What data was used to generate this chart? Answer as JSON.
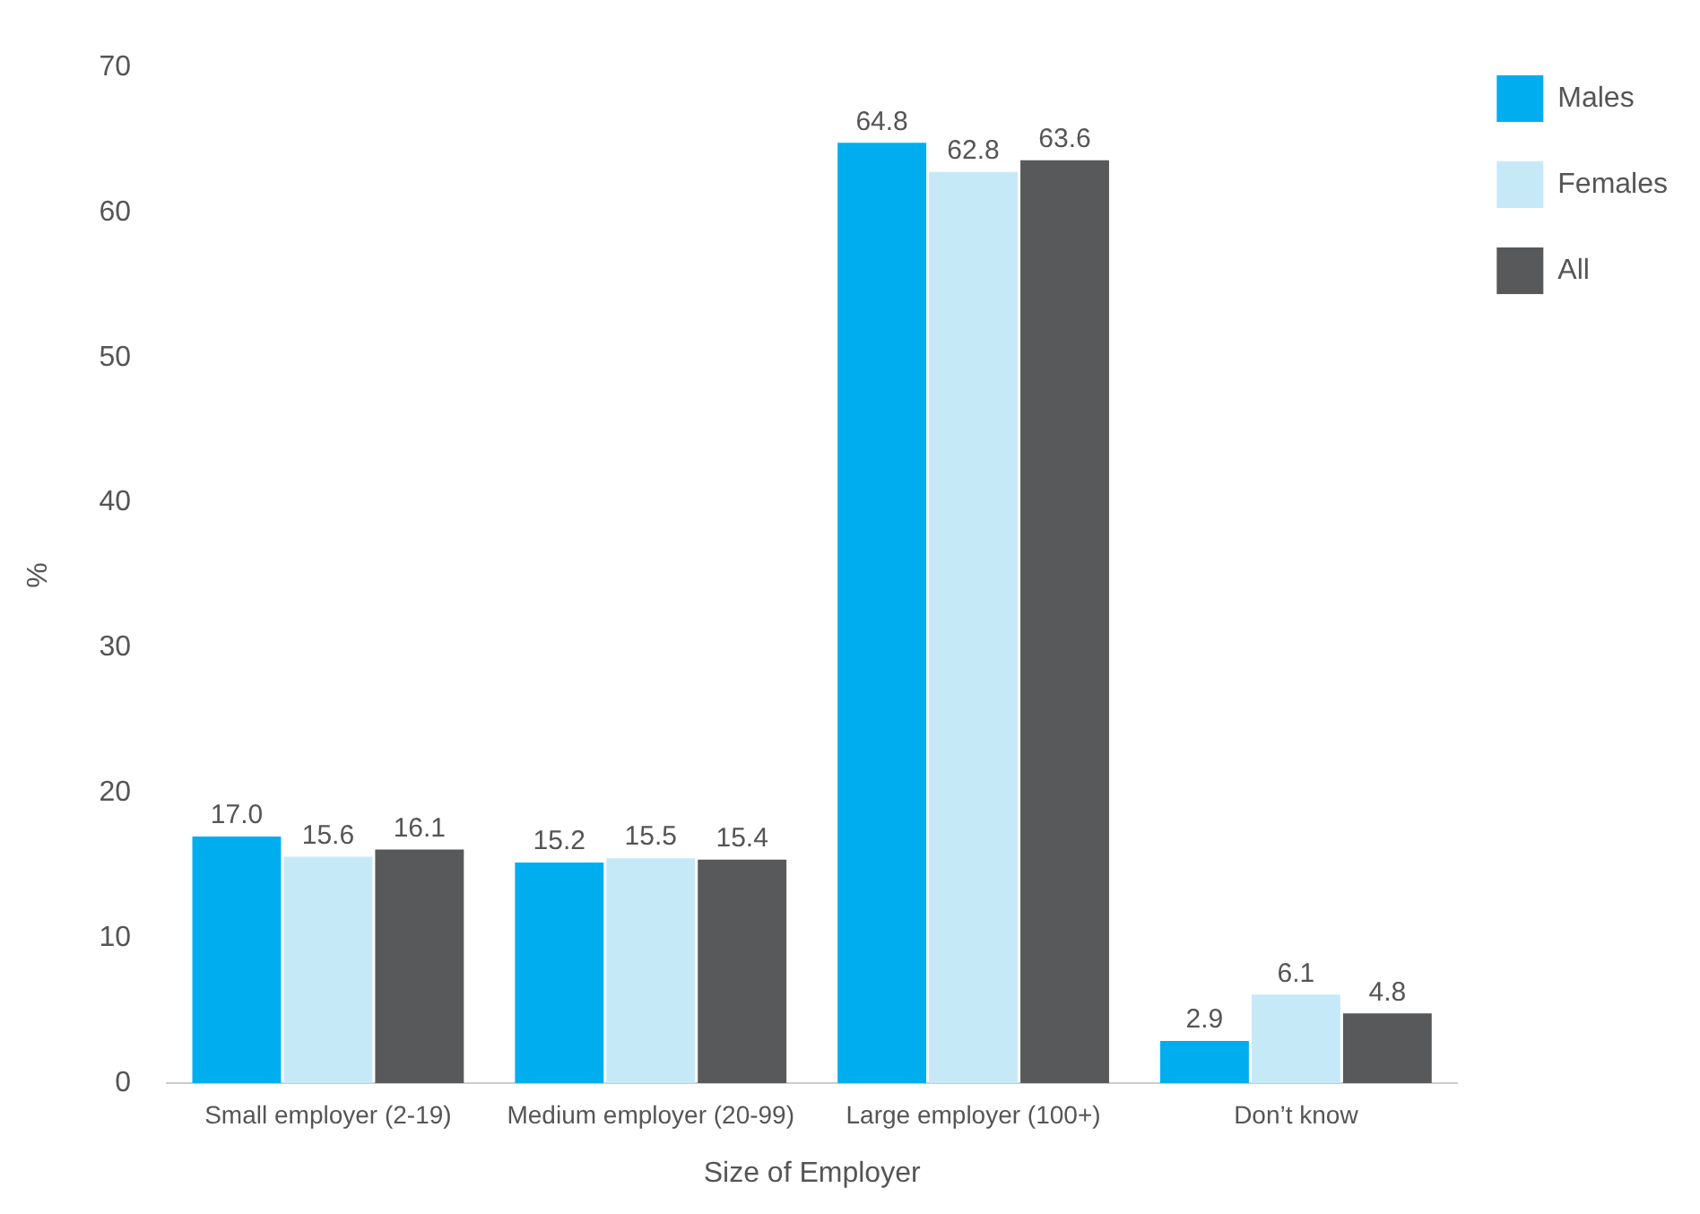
{
  "chart_data": {
    "type": "bar",
    "xlabel": "Size of Employer",
    "ylabel": "%",
    "categories": [
      "Small employer (2-19)",
      "Medium employer (20-99)",
      "Large employer (100+)",
      "Don’t know"
    ],
    "series": [
      {
        "name": "Males",
        "color": "#00aeef",
        "values": [
          17.0,
          15.2,
          64.8,
          2.9
        ],
        "value_labels": [
          "17.0",
          "15.2",
          "64.8",
          "2.9"
        ]
      },
      {
        "name": "Females",
        "color": "#c6e9f8",
        "values": [
          15.6,
          15.5,
          62.8,
          6.1
        ],
        "value_labels": [
          "15.6",
          "15.5",
          "62.8",
          "6.1"
        ]
      },
      {
        "name": "All",
        "color": "#58595b",
        "values": [
          16.1,
          15.4,
          63.6,
          4.8
        ],
        "value_labels": [
          "16.1",
          "15.4",
          "63.6",
          "4.8"
        ]
      }
    ],
    "ylim": [
      0,
      70
    ],
    "yticks": [
      0,
      10,
      20,
      30,
      40,
      50,
      60,
      70
    ],
    "grid": false,
    "legend": "top right"
  }
}
